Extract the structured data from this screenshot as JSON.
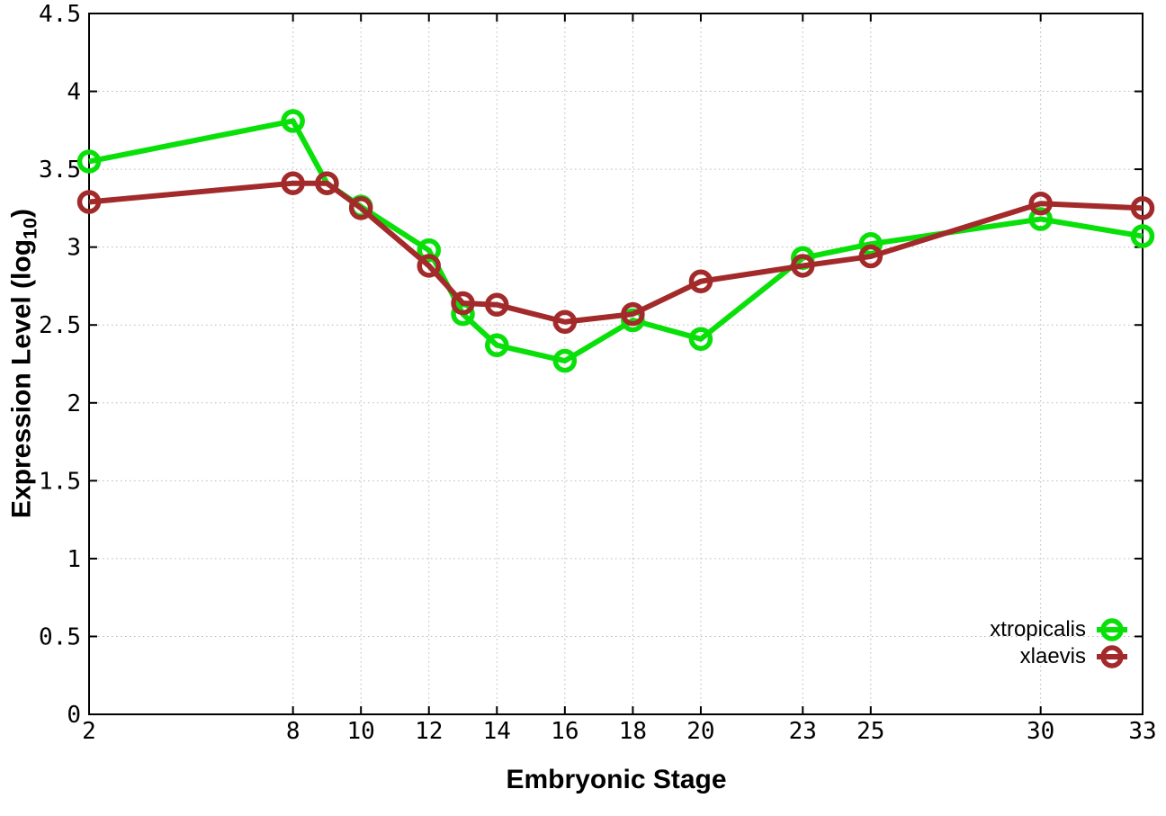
{
  "chart_data": {
    "type": "line",
    "title": "",
    "xlabel": "Embryonic Stage",
    "ylabel": "Expression Level (log10)",
    "ylabel_parts": {
      "prefix": "Expression Level (log",
      "sub": "10",
      "suffix": ")"
    },
    "xlim": [
      2,
      33
    ],
    "ylim": [
      0,
      4.5
    ],
    "x_ticks": [
      2,
      8,
      10,
      12,
      14,
      16,
      18,
      20,
      23,
      25,
      30,
      33
    ],
    "y_ticks": [
      0,
      0.5,
      1,
      1.5,
      2,
      2.5,
      3,
      3.5,
      4,
      4.5
    ],
    "grid": true,
    "grid_color": "#b8b8b8",
    "axis_color": "#000000",
    "legend_position": "inside-bottom-right",
    "x": [
      2,
      8,
      9,
      10,
      12,
      13,
      14,
      16,
      18,
      20,
      23,
      25,
      30,
      33
    ],
    "series": [
      {
        "name": "xtropicalis",
        "color": "#09e009",
        "marker": "open-circle",
        "values": [
          3.55,
          3.81,
          3.41,
          3.26,
          2.98,
          2.57,
          2.37,
          2.27,
          2.53,
          2.41,
          2.93,
          3.02,
          3.18,
          3.07
        ]
      },
      {
        "name": "xlaevis",
        "color": "#a32a2a",
        "marker": "open-circle",
        "values": [
          3.29,
          3.41,
          3.41,
          3.25,
          2.88,
          2.64,
          2.63,
          2.52,
          2.57,
          2.78,
          2.88,
          2.94,
          3.28,
          3.25
        ]
      }
    ]
  }
}
